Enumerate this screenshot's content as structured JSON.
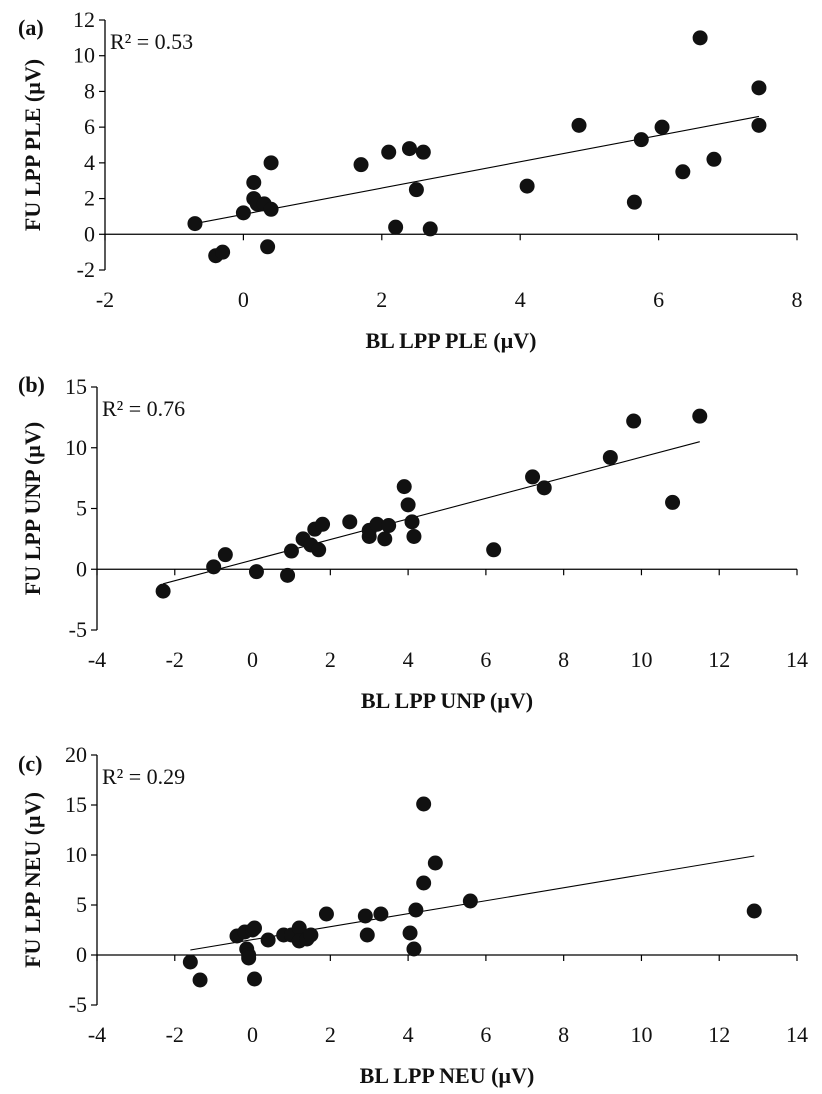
{
  "chart_data": [
    {
      "type": "scatter",
      "panel_label": "(a)",
      "annotation": "R² = 0.53",
      "xlabel": "BL LPP PLE (µV)",
      "ylabel": "FU LPP PLE (µV)",
      "xlim": [
        -2,
        8
      ],
      "ylim": [
        -2,
        12
      ],
      "xticks": [
        "-2",
        "0",
        "2",
        "4",
        "6",
        "8"
      ],
      "yticks": [
        "-2",
        "0",
        "2",
        "4",
        "6",
        "8",
        "10",
        "12"
      ],
      "points": [
        [
          -0.7,
          0.6
        ],
        [
          -0.4,
          -1.2
        ],
        [
          -0.3,
          -1.0
        ],
        [
          0.0,
          1.2
        ],
        [
          0.15,
          2.9
        ],
        [
          0.15,
          2.0
        ],
        [
          0.2,
          1.7
        ],
        [
          0.3,
          1.7
        ],
        [
          0.4,
          1.4
        ],
        [
          0.4,
          4.0
        ],
        [
          0.35,
          -0.7
        ],
        [
          1.7,
          3.9
        ],
        [
          2.1,
          4.6
        ],
        [
          2.2,
          0.4
        ],
        [
          2.4,
          4.8
        ],
        [
          2.5,
          2.5
        ],
        [
          2.6,
          4.6
        ],
        [
          2.7,
          0.3
        ],
        [
          4.1,
          2.7
        ],
        [
          4.85,
          6.1
        ],
        [
          5.65,
          1.8
        ],
        [
          5.75,
          5.3
        ],
        [
          6.05,
          6.0
        ],
        [
          6.35,
          3.5
        ],
        [
          6.6,
          11.0
        ],
        [
          6.8,
          4.2
        ],
        [
          7.45,
          8.2
        ],
        [
          7.45,
          6.1
        ]
      ],
      "trendline": [
        [
          -0.7,
          0.6
        ],
        [
          7.45,
          6.6
        ]
      ]
    },
    {
      "type": "scatter",
      "panel_label": "(b)",
      "annotation": "R² = 0.76",
      "xlabel": "BL LPP UNP (µV)",
      "ylabel": "FU LPP UNP (µV)",
      "xlim": [
        -4,
        14
      ],
      "ylim": [
        -5,
        15
      ],
      "xticks": [
        "-4",
        "-2",
        "0",
        "2",
        "4",
        "6",
        "8",
        "10",
        "12",
        "14"
      ],
      "yticks": [
        "-5",
        "0",
        "5",
        "10",
        "15"
      ],
      "points": [
        [
          -2.3,
          -1.8
        ],
        [
          -1.0,
          0.2
        ],
        [
          -0.7,
          1.2
        ],
        [
          0.1,
          -0.2
        ],
        [
          0.9,
          -0.5
        ],
        [
          1.0,
          1.5
        ],
        [
          1.3,
          2.5
        ],
        [
          1.5,
          2.0
        ],
        [
          1.6,
          3.3
        ],
        [
          1.7,
          1.6
        ],
        [
          1.8,
          3.7
        ],
        [
          2.5,
          3.9
        ],
        [
          3.0,
          2.7
        ],
        [
          3.0,
          3.2
        ],
        [
          3.2,
          3.7
        ],
        [
          3.4,
          2.5
        ],
        [
          3.5,
          3.6
        ],
        [
          3.9,
          6.8
        ],
        [
          4.0,
          5.3
        ],
        [
          4.1,
          3.9
        ],
        [
          4.15,
          2.7
        ],
        [
          6.2,
          1.6
        ],
        [
          7.2,
          7.6
        ],
        [
          7.5,
          6.7
        ],
        [
          9.2,
          9.2
        ],
        [
          9.8,
          12.2
        ],
        [
          10.8,
          5.5
        ],
        [
          11.5,
          12.6
        ]
      ],
      "trendline": [
        [
          -2.3,
          -1.2
        ],
        [
          11.5,
          10.5
        ]
      ]
    },
    {
      "type": "scatter",
      "panel_label": "(c)",
      "annotation": "R² = 0.29",
      "xlabel": "BL LPP NEU (µV)",
      "ylabel": "FU LPP NEU (µV)",
      "xlim": [
        -4,
        14
      ],
      "ylim": [
        -5,
        20
      ],
      "xticks": [
        "-4",
        "-2",
        "0",
        "2",
        "4",
        "6",
        "8",
        "10",
        "12",
        "14"
      ],
      "yticks": [
        "-5",
        "0",
        "5",
        "10",
        "15",
        "20"
      ],
      "points": [
        [
          -1.6,
          -0.7
        ],
        [
          -1.35,
          -2.5
        ],
        [
          -0.4,
          1.9
        ],
        [
          -0.2,
          2.3
        ],
        [
          -0.15,
          0.6
        ],
        [
          -0.1,
          0.0
        ],
        [
          -0.1,
          -0.3
        ],
        [
          0.0,
          2.5
        ],
        [
          0.05,
          2.7
        ],
        [
          0.05,
          -2.4
        ],
        [
          0.4,
          1.5
        ],
        [
          0.8,
          2.0
        ],
        [
          1.0,
          2.0
        ],
        [
          1.2,
          2.7
        ],
        [
          1.2,
          1.4
        ],
        [
          1.4,
          1.6
        ],
        [
          1.5,
          2.0
        ],
        [
          1.9,
          4.1
        ],
        [
          2.9,
          3.9
        ],
        [
          2.95,
          2.0
        ],
        [
          3.3,
          4.1
        ],
        [
          4.05,
          2.2
        ],
        [
          4.15,
          0.6
        ],
        [
          4.2,
          4.5
        ],
        [
          4.4,
          15.1
        ],
        [
          4.4,
          7.2
        ],
        [
          4.7,
          9.2
        ],
        [
          5.6,
          5.4
        ],
        [
          12.9,
          4.4
        ]
      ],
      "trendline": [
        [
          -1.6,
          0.5
        ],
        [
          12.9,
          9.9
        ]
      ]
    }
  ]
}
